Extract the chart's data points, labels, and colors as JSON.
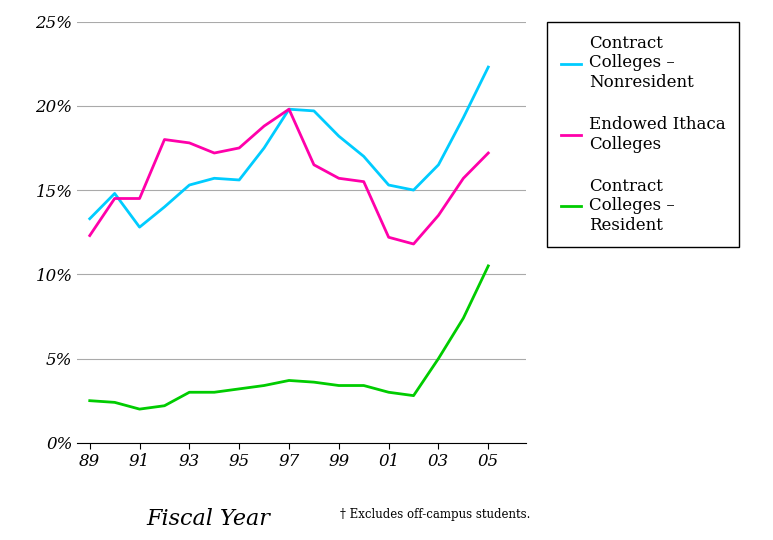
{
  "x": [
    89,
    90,
    91,
    92,
    93,
    94,
    95,
    96,
    97,
    98,
    99,
    100,
    101,
    102,
    103,
    104,
    105
  ],
  "contract_nonresident": [
    0.133,
    0.148,
    0.128,
    0.14,
    0.153,
    0.157,
    0.156,
    0.175,
    0.198,
    0.197,
    0.182,
    0.17,
    0.153,
    0.15,
    0.165,
    0.193,
    0.223
  ],
  "endowed_ithaca": [
    0.123,
    0.145,
    0.145,
    0.18,
    0.178,
    0.172,
    0.175,
    0.188,
    0.198,
    0.165,
    0.157,
    0.155,
    0.122,
    0.118,
    0.135,
    0.157,
    0.172
  ],
  "contract_resident": [
    0.025,
    0.024,
    0.02,
    0.022,
    0.03,
    0.03,
    0.032,
    0.034,
    0.037,
    0.036,
    0.034,
    0.034,
    0.03,
    0.028,
    0.05,
    0.074,
    0.105
  ],
  "colors": {
    "contract_nonresident": "#00CCFF",
    "endowed_ithaca": "#FF00AA",
    "contract_resident": "#00CC00"
  },
  "xlabel": "Fiscal Year",
  "footnote": "† Excludes off-campus students.",
  "ylim": [
    0,
    0.25
  ],
  "yticks": [
    0,
    0.05,
    0.1,
    0.15,
    0.2,
    0.25
  ],
  "xtick_labels": [
    "89",
    "91",
    "93",
    "95",
    "97",
    "99",
    "01",
    "03",
    "05"
  ],
  "xtick_positions": [
    89,
    91,
    93,
    95,
    97,
    99,
    101,
    103,
    105
  ],
  "legend_labels": [
    "Contract\nColleges –\nNonresident",
    "Endowed Ithaca\nColleges",
    "Contract\nColleges –\nResident"
  ],
  "background_color": "#FFFFFF",
  "line_width": 2.0,
  "figwidth": 7.73,
  "figheight": 5.4,
  "dpi": 100
}
